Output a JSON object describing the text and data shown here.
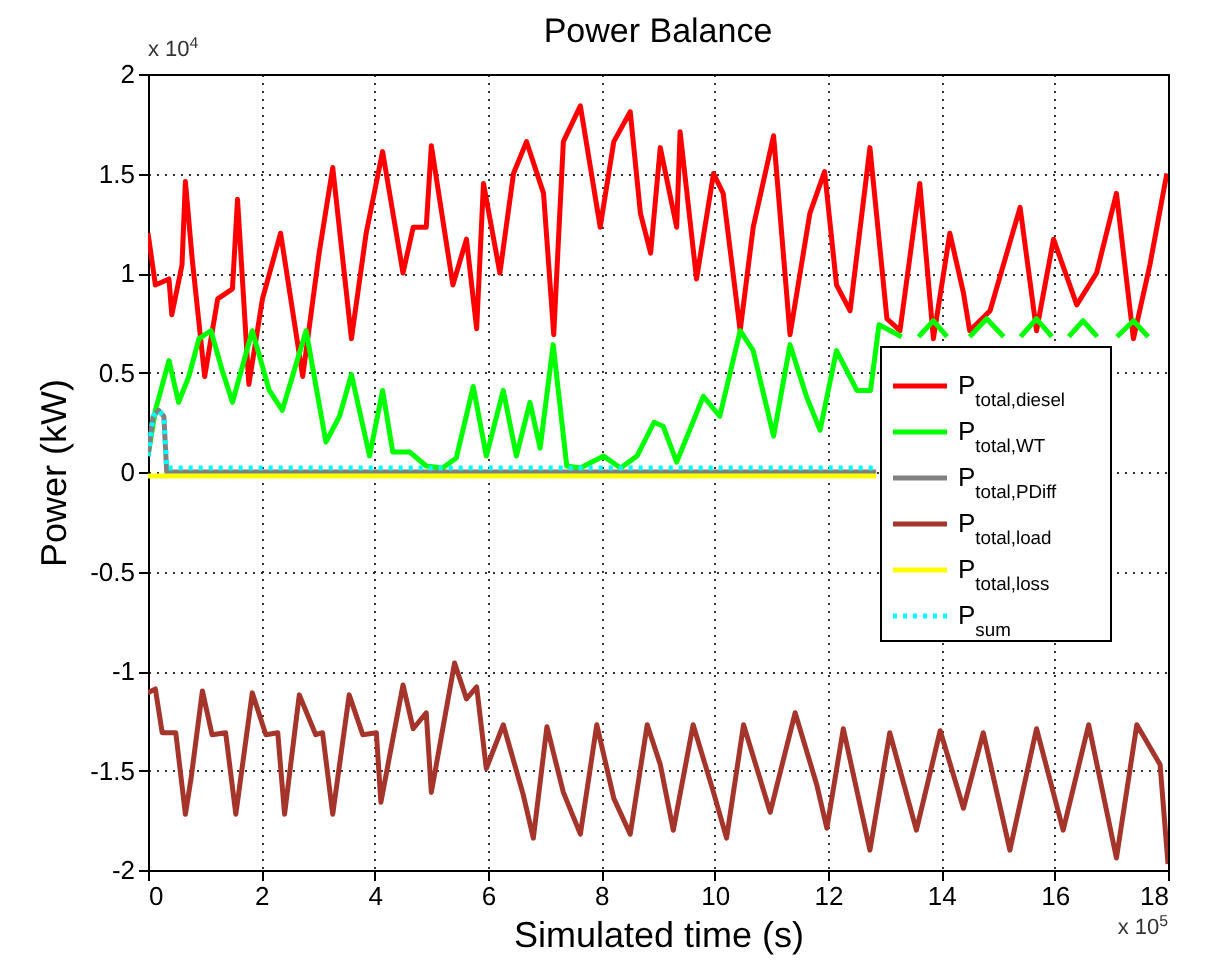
{
  "chart_data": {
    "type": "line",
    "title": "Power Balance",
    "xlabel": "Simulated time (s)",
    "ylabel": "Power (kW)",
    "annotations": [
      "x 10$^{4}$",
      "x 10$^{5}$"
    ],
    "xlim": [
      0,
      18
    ],
    "xticks": [
      0,
      2,
      4,
      6,
      8,
      10,
      12,
      14,
      16,
      18
    ],
    "ylim": [
      -2,
      2
    ],
    "yticks": [
      -2,
      -1.5,
      -1,
      -0.5,
      0,
      0.5,
      1,
      1.5,
      2
    ],
    "grid": true,
    "legend": "right",
    "series": [
      {
        "name": "P$_{total,diesel}$",
        "color": "#ff0000",
        "line_style": "solid",
        "x": [
          0,
          0.13,
          0.37,
          0.42,
          0.6,
          0.66,
          0.78,
          1.0,
          1.23,
          1.49,
          1.58,
          1.78,
          2.02,
          2.34,
          2.73,
          3.02,
          3.26,
          3.59,
          3.85,
          4.14,
          4.5,
          4.68,
          4.91,
          5.0,
          5.38,
          5.62,
          5.8,
          5.92,
          6.21,
          6.45,
          6.68,
          6.98,
          7.16,
          7.33,
          7.63,
          7.98,
          8.22,
          8.51,
          8.69,
          8.87,
          9.04,
          9.33,
          9.39,
          9.68,
          9.98,
          10.15,
          10.45,
          10.68,
          11.04,
          11.33,
          11.68,
          11.94,
          12.15,
          12.39,
          12.74,
          13.04,
          13.27,
          13.62,
          13.86,
          14.15,
          14.39,
          14.5,
          14.86,
          15.39,
          15.68,
          15.98,
          16.39,
          16.74,
          17.09,
          17.39,
          17.68,
          17.98
        ],
        "values": [
          1.2,
          0.94,
          0.97,
          0.79,
          1.04,
          1.46,
          1.07,
          0.48,
          0.87,
          0.92,
          1.37,
          0.44,
          0.87,
          1.2,
          0.48,
          1.1,
          1.53,
          0.67,
          1.2,
          1.61,
          1.0,
          1.23,
          1.23,
          1.64,
          0.94,
          1.17,
          0.72,
          1.45,
          1.0,
          1.5,
          1.66,
          1.4,
          0.69,
          1.66,
          1.84,
          1.23,
          1.66,
          1.81,
          1.3,
          1.1,
          1.63,
          1.23,
          1.71,
          0.97,
          1.5,
          1.4,
          0.71,
          1.23,
          1.69,
          0.69,
          1.3,
          1.51,
          0.94,
          0.81,
          1.63,
          0.77,
          0.71,
          1.45,
          0.67,
          1.2,
          0.9,
          0.71,
          0.81,
          1.33,
          0.71,
          1.17,
          0.84,
          1.0,
          1.4,
          0.67,
          1.04,
          1.5
        ]
      },
      {
        "name": "P$_{total,WT}$",
        "color": "#00ff00",
        "line_style": "solid",
        "x": [
          0,
          0.13,
          0.37,
          0.54,
          0.72,
          0.9,
          1.11,
          1.31,
          1.49,
          1.84,
          2.14,
          2.37,
          2.79,
          3.14,
          3.38,
          3.59,
          3.91,
          4.14,
          4.32,
          4.62,
          4.91,
          5.2,
          5.44,
          5.74,
          5.97,
          6.27,
          6.5,
          6.74,
          6.92,
          7.15,
          7.39,
          7.63,
          8.04,
          8.34,
          8.63,
          8.93,
          9.09,
          9.33,
          9.8,
          10.09,
          10.45,
          10.68,
          11.04,
          11.33,
          11.62,
          11.86,
          12.15,
          12.51,
          12.75,
          12.9,
          13.3,
          13.45,
          13.6,
          13.86,
          14.1,
          14.3,
          14.5,
          14.8,
          15.1,
          15.25,
          15.4,
          15.68,
          15.95,
          16.1,
          16.25,
          16.5,
          16.75,
          16.9,
          17.1,
          17.39,
          17.65
        ],
        "values": [
          0.08,
          0.31,
          0.56,
          0.35,
          0.48,
          0.67,
          0.71,
          0.51,
          0.35,
          0.71,
          0.41,
          0.31,
          0.71,
          0.15,
          0.28,
          0.49,
          0.08,
          0.41,
          0.1,
          0.1,
          0.03,
          0.02,
          0.07,
          0.43,
          0.08,
          0.41,
          0.08,
          0.35,
          0.12,
          0.64,
          0.03,
          0.02,
          0.08,
          0.02,
          0.08,
          0.25,
          0.23,
          0.05,
          0.38,
          0.28,
          0.71,
          0.61,
          0.18,
          0.64,
          0.38,
          0.21,
          0.61,
          0.41,
          0.41,
          0.74,
          0.68,
          null,
          0.68,
          0.76,
          0.68,
          null,
          0.68,
          0.77,
          0.68,
          null,
          0.68,
          0.77,
          0.68,
          null,
          0.68,
          0.76,
          0.68,
          null,
          0.68,
          0.76,
          0.68
        ]
      },
      {
        "name": "P$_{total,PDiff}$",
        "color": "#808080",
        "line_style": "solid",
        "x": [
          0,
          0.09,
          0.19,
          0.28,
          0.33,
          12.85
        ],
        "values": [
          0.08,
          0.28,
          0.31,
          0.28,
          0,
          0
        ]
      },
      {
        "name": "P$_{total,load}$",
        "color": "#a5352a",
        "line_style": "solid",
        "x": [
          0,
          0.13,
          0.25,
          0.49,
          0.66,
          0.76,
          0.96,
          1.13,
          1.37,
          1.55,
          1.84,
          2.08,
          2.29,
          2.41,
          2.67,
          2.96,
          3.08,
          3.26,
          3.55,
          3.79,
          4.03,
          4.11,
          4.5,
          4.68,
          4.91,
          5.0,
          5.41,
          5.62,
          5.8,
          5.97,
          6.27,
          6.62,
          6.8,
          7.04,
          7.33,
          7.63,
          7.92,
          8.22,
          8.51,
          8.81,
          9.04,
          9.27,
          9.62,
          9.98,
          10.21,
          10.51,
          10.98,
          11.42,
          11.8,
          11.98,
          12.27,
          12.74,
          13.09,
          13.56,
          13.98,
          14.39,
          14.74,
          15.21,
          15.68,
          16.15,
          16.6,
          17.09,
          17.45,
          17.86,
          18.0
        ],
        "values": [
          -1.11,
          -1.09,
          -1.31,
          -1.31,
          -1.72,
          -1.54,
          -1.1,
          -1.32,
          -1.31,
          -1.72,
          -1.11,
          -1.32,
          -1.31,
          -1.72,
          -1.12,
          -1.32,
          -1.31,
          -1.72,
          -1.12,
          -1.32,
          -1.31,
          -1.66,
          -1.07,
          -1.29,
          -1.21,
          -1.61,
          -0.96,
          -1.14,
          -1.08,
          -1.49,
          -1.27,
          -1.62,
          -1.84,
          -1.28,
          -1.61,
          -1.82,
          -1.27,
          -1.64,
          -1.82,
          -1.27,
          -1.47,
          -1.8,
          -1.27,
          -1.61,
          -1.84,
          -1.27,
          -1.71,
          -1.21,
          -1.57,
          -1.79,
          -1.29,
          -1.9,
          -1.31,
          -1.8,
          -1.3,
          -1.69,
          -1.31,
          -1.9,
          -1.29,
          -1.8,
          -1.27,
          -1.94,
          -1.27,
          -1.47,
          -1.97
        ]
      },
      {
        "name": "P$_{total,loss}$",
        "color": "#ffff00",
        "line_style": "solid",
        "x": [
          0,
          12.85
        ],
        "values": [
          -0.02,
          -0.02
        ]
      },
      {
        "name": "P$_{sum}$",
        "color": "#00ffff",
        "line_style": "dotted",
        "x": [
          0,
          0.09,
          0.19,
          0.28,
          0.33,
          12.85
        ],
        "values": [
          0.08,
          0.28,
          0.31,
          0.28,
          0.02,
          0.02
        ]
      }
    ]
  }
}
